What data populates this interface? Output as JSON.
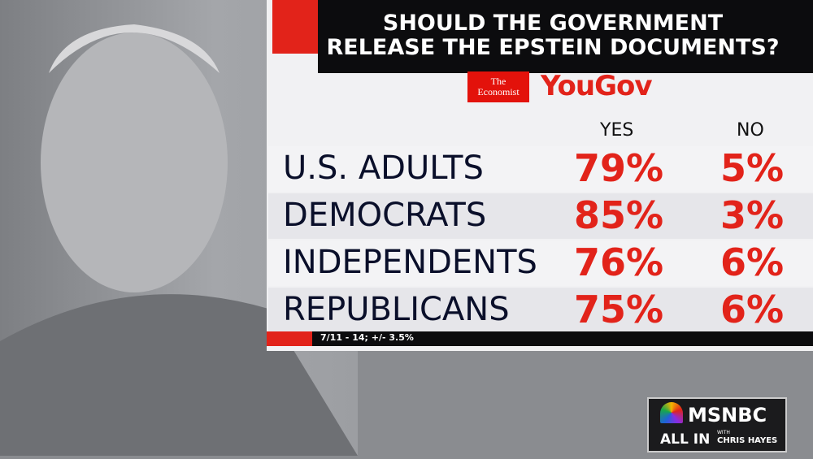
{
  "graphic": {
    "title_lines": [
      "SHOULD THE GOVERNMENT",
      "RELEASE THE EPSTEIN DOCUMENTS?"
    ],
    "sources": [
      "The Economist",
      "YouGov"
    ],
    "table": {
      "header": [
        "YES",
        "NO"
      ],
      "rows": [
        [
          "U.S. ADULTS",
          "79%",
          "5%"
        ],
        [
          "DEMOCRATS",
          "85%",
          "3%"
        ],
        [
          "INDEPENDENTS",
          "76%",
          "6%"
        ],
        [
          "REPUBLICANS",
          "75%",
          "6%"
        ]
      ]
    },
    "footnote": "7/11 - 14; +/- 3.5%"
  },
  "network": {
    "name": "MSNBC",
    "show": "ALL IN",
    "with": "WITH",
    "host": "CHRIS HAYES"
  }
}
